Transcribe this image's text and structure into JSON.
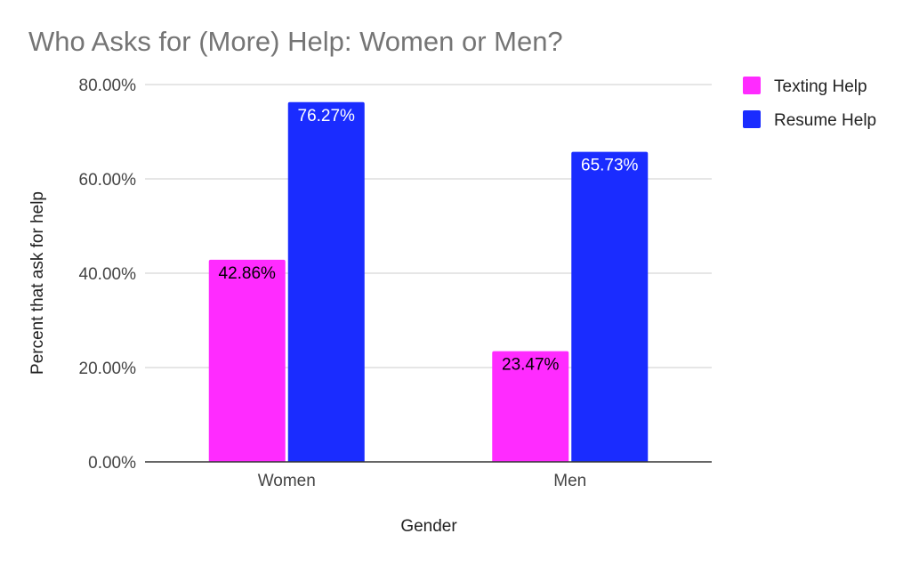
{
  "chart_data": {
    "type": "bar",
    "title": "Who Asks for (More) Help: Women or Men?",
    "xlabel": "Gender",
    "ylabel": "Percent that ask for help",
    "categories": [
      "Women",
      "Men"
    ],
    "ylim": [
      0,
      80
    ],
    "yticks": [
      0,
      20,
      40,
      60,
      80
    ],
    "ytick_labels": [
      "0.00%",
      "20.00%",
      "40.00%",
      "60.00%",
      "80.00%"
    ],
    "grid": true,
    "legend_position": "right",
    "series": [
      {
        "name": "Texting Help",
        "color": "#ff2bff",
        "values": [
          42.86,
          23.47
        ],
        "labels": [
          "42.86%",
          "23.47%"
        ],
        "label_color": "#000000"
      },
      {
        "name": "Resume Help",
        "color": "#1a2cff",
        "values": [
          76.27,
          65.73
        ],
        "labels": [
          "76.27%",
          "65.73%"
        ],
        "label_color": "#ffffff"
      }
    ]
  }
}
